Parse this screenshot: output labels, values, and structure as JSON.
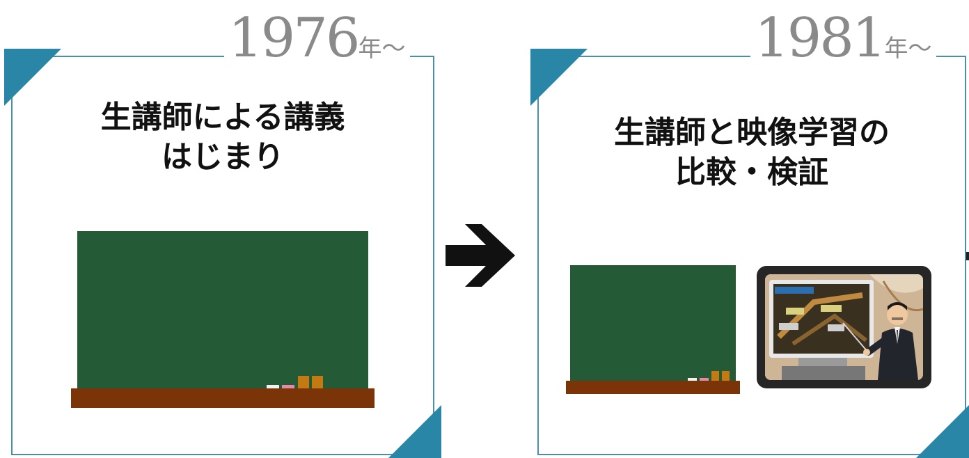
{
  "panels": [
    {
      "year": "1976",
      "year_suffix": "年～",
      "title_line1": "生講師による講義",
      "title_line2": "はじまり"
    },
    {
      "year": "1981",
      "year_suffix": "年～",
      "title_line1": "生講師と映像学習の",
      "title_line2": "比較・検証"
    }
  ],
  "colors": {
    "accent": "#2a86a6",
    "frame": "#4a8fa6",
    "blackboard": "#245a36",
    "ledge": "#7a3408",
    "year": "#8a8a8a"
  },
  "icons": [
    "arrow-right-icon",
    "blackboard-icon",
    "video-lecture-image"
  ]
}
